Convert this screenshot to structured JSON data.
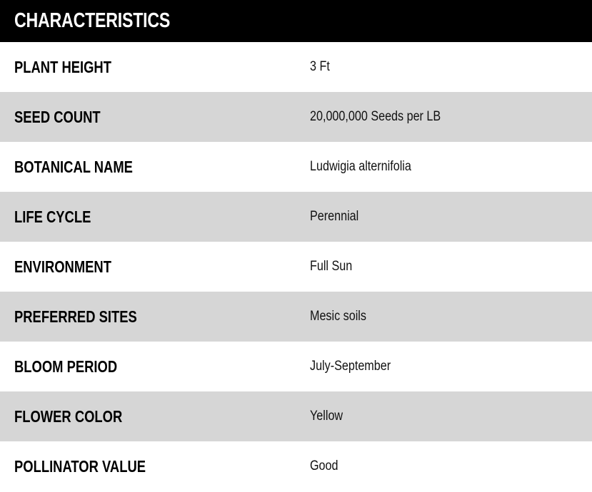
{
  "title": "CHARACTERISTICS",
  "colors": {
    "header_bg": "#000000",
    "alt_row_bg": "#d6d6d6"
  },
  "rows": [
    {
      "label": "PLANT HEIGHT",
      "value": "3 Ft"
    },
    {
      "label": "SEED COUNT",
      "value": "20,000,000 Seeds per LB"
    },
    {
      "label": "BOTANICAL NAME",
      "value": "Ludwigia alternifolia"
    },
    {
      "label": "LIFE CYCLE",
      "value": "Perennial"
    },
    {
      "label": "ENVIRONMENT",
      "value": "Full Sun"
    },
    {
      "label": "PREFERRED SITES",
      "value": "Mesic soils"
    },
    {
      "label": "BLOOM PERIOD",
      "value": "July-September"
    },
    {
      "label": "FLOWER COLOR",
      "value": "Yellow"
    },
    {
      "label": "POLLINATOR VALUE",
      "value": "Good"
    }
  ]
}
